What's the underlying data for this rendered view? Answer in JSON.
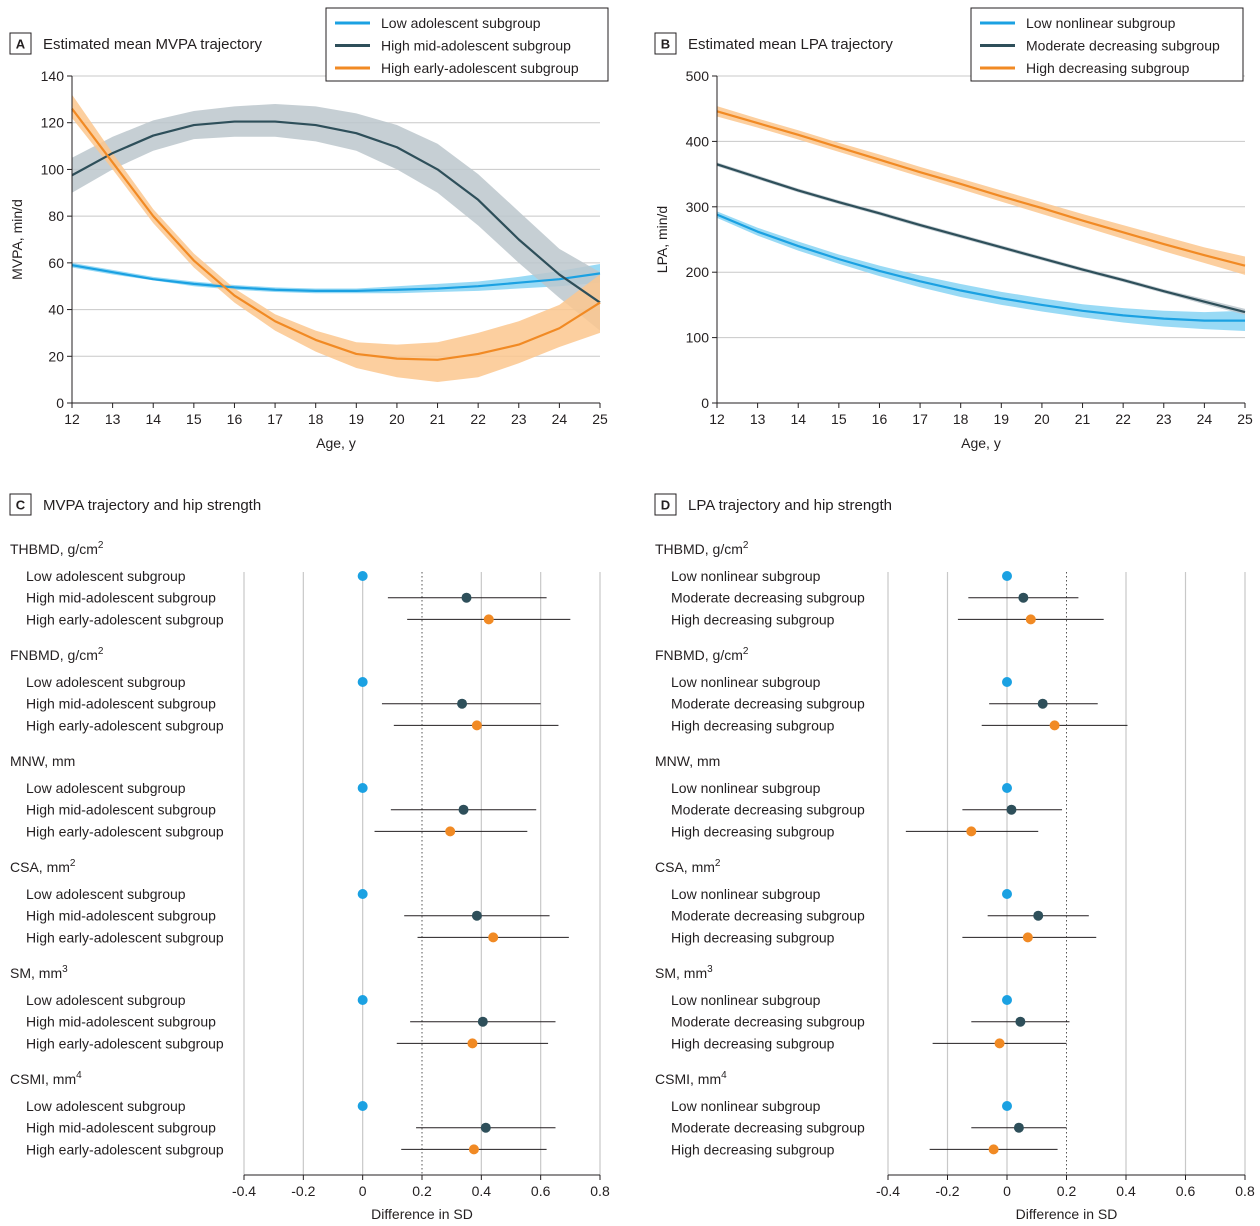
{
  "chart_data": [
    {
      "panel": "A",
      "type": "line",
      "title": "Estimated mean MVPA trajectory",
      "xlabel": "Age, y",
      "ylabel": "MVPA, min/d",
      "xlim": [
        12,
        25
      ],
      "ylim": [
        0,
        140
      ],
      "xticks": [
        "12",
        "13",
        "14",
        "15",
        "16",
        "17",
        "18",
        "19",
        "20",
        "21",
        "22",
        "23",
        "24",
        "25"
      ],
      "yticks": [
        "0",
        "20",
        "40",
        "60",
        "80",
        "100",
        "120",
        "140"
      ],
      "grid": "horizontal",
      "legend_position": "top-right",
      "series": [
        {
          "name": "Low adolescent subgroup",
          "color": "#1ba1e2",
          "band_color": "#87d3f3",
          "x": [
            12,
            13,
            14,
            15,
            16,
            17,
            18,
            19,
            20,
            21,
            22,
            23,
            24,
            25
          ],
          "y": [
            59,
            56,
            53,
            51,
            49.5,
            48.5,
            48,
            48,
            48.5,
            49,
            50,
            51.5,
            53,
            55.5
          ],
          "lower": [
            58,
            55,
            52.5,
            50,
            48.5,
            47.5,
            47,
            47,
            47,
            47.5,
            48,
            49,
            50,
            51.5
          ],
          "upper": [
            60,
            57,
            54,
            52,
            50.5,
            49.5,
            49,
            49,
            50,
            51,
            52,
            54,
            56.5,
            59.5
          ]
        },
        {
          "name": "High mid-adolescent subgroup",
          "color": "#2e4f5a",
          "band_color": "#bcc7cc",
          "x": [
            12,
            13,
            14,
            15,
            16,
            17,
            18,
            19,
            20,
            21,
            22,
            23,
            24,
            25
          ],
          "y": [
            97.5,
            107,
            114.5,
            119,
            120.5,
            120.5,
            119,
            115.5,
            109.5,
            100,
            87,
            70,
            55,
            43
          ],
          "lower": [
            90,
            100,
            108,
            113,
            114,
            114,
            112,
            108,
            100,
            90,
            76,
            60,
            45,
            31
          ],
          "upper": [
            105,
            114,
            121,
            125,
            127,
            128,
            127,
            124,
            119,
            111,
            98,
            82,
            66,
            56
          ]
        },
        {
          "name": "High early-adolescent subgroup",
          "color": "#f18a24",
          "band_color": "#fcc78e",
          "x": [
            12,
            13,
            14,
            15,
            16,
            17,
            18,
            19,
            20,
            21,
            22,
            23,
            24,
            25
          ],
          "y": [
            126,
            103,
            80,
            61,
            46,
            35,
            27,
            21,
            19,
            18.5,
            21,
            25,
            32,
            43
          ],
          "lower": [
            122,
            100,
            77,
            58,
            43,
            31,
            22,
            15,
            11,
            9,
            11,
            17,
            24,
            30
          ],
          "upper": [
            132,
            107,
            83,
            64,
            49,
            38,
            31,
            26,
            25,
            26,
            30,
            35,
            42,
            55
          ]
        }
      ]
    },
    {
      "panel": "B",
      "type": "line",
      "title": "Estimated mean LPA trajectory",
      "xlabel": "Age, y",
      "ylabel": "LPA, min/d",
      "xlim": [
        12,
        25
      ],
      "ylim": [
        0,
        500
      ],
      "xticks": [
        "12",
        "13",
        "14",
        "15",
        "16",
        "17",
        "18",
        "19",
        "20",
        "21",
        "22",
        "23",
        "24",
        "25"
      ],
      "yticks": [
        "0",
        "100",
        "200",
        "300",
        "400",
        "500"
      ],
      "grid": "horizontal",
      "legend_position": "top-right",
      "series": [
        {
          "name": "Low nonlinear subgroup",
          "color": "#1ba1e2",
          "band_color": "#87d3f3",
          "x": [
            12,
            13,
            14,
            15,
            16,
            17,
            18,
            19,
            20,
            21,
            22,
            23,
            24,
            25
          ],
          "y": [
            288,
            262,
            240,
            220,
            202,
            186,
            172,
            160,
            150,
            141,
            134,
            129,
            126,
            126
          ],
          "lower": [
            283,
            256,
            233,
            213,
            194,
            177,
            162,
            150,
            140,
            131,
            123,
            117,
            113,
            110
          ],
          "upper": [
            293,
            268,
            247,
            227,
            210,
            195,
            182,
            170,
            160,
            151,
            145,
            141,
            139,
            141
          ]
        },
        {
          "name": "Moderate decreasing subgroup",
          "color": "#2e4f5a",
          "band_color": "#bcc7cc",
          "x": [
            12,
            13,
            14,
            15,
            16,
            17,
            18,
            19,
            20,
            21,
            22,
            23,
            24,
            25
          ],
          "y": [
            365,
            345,
            325,
            307,
            290,
            272,
            255,
            238,
            221,
            204,
            188,
            171,
            155,
            139
          ],
          "lower": [
            362,
            342,
            322,
            304,
            287,
            269,
            252,
            235,
            218,
            201,
            185,
            168,
            151,
            135
          ],
          "upper": [
            368,
            348,
            328,
            310,
            293,
            275,
            258,
            241,
            224,
            207,
            191,
            174,
            159,
            144
          ]
        },
        {
          "name": "High decreasing subgroup",
          "color": "#f18a24",
          "band_color": "#fcc78e",
          "x": [
            12,
            13,
            14,
            15,
            16,
            17,
            18,
            19,
            20,
            21,
            22,
            23,
            24,
            25
          ],
          "y": [
            446,
            428,
            410,
            391,
            372,
            353,
            335,
            316,
            298,
            279,
            261,
            243,
            226,
            210
          ],
          "lower": [
            438,
            421,
            403,
            384,
            365,
            346,
            327,
            308,
            289,
            270,
            251,
            232,
            214,
            196
          ],
          "upper": [
            454,
            435,
            417,
            398,
            380,
            361,
            343,
            325,
            307,
            289,
            272,
            255,
            238,
            224
          ]
        }
      ]
    },
    {
      "panel": "C",
      "type": "scatter",
      "title": "MVPA trajectory and hip strength",
      "xlabel": "Difference in SD",
      "xlim": [
        -0.4,
        0.8
      ],
      "xticks": [
        "-0.4",
        "-0.2",
        "0",
        "0.2",
        "0.4",
        "0.6",
        "0.8"
      ],
      "reference_line": 0.2,
      "groups": [
        {
          "label": "THBMD, g/cm",
          "sup": "2",
          "rows": [
            {
              "name": "Low adolescent subgroup",
              "color": "#1ba1e2",
              "est": 0.0
            },
            {
              "name": "High mid-adolescent subgroup",
              "color": "#2e4f5a",
              "est": 0.35,
              "lo": 0.085,
              "hi": 0.62
            },
            {
              "name": "High early-adolescent subgroup",
              "color": "#f18a24",
              "est": 0.425,
              "lo": 0.15,
              "hi": 0.7
            }
          ]
        },
        {
          "label": "FNBMD, g/cm",
          "sup": "2",
          "rows": [
            {
              "name": "Low adolescent subgroup",
              "color": "#1ba1e2",
              "est": 0.0
            },
            {
              "name": "High mid-adolescent subgroup",
              "color": "#2e4f5a",
              "est": 0.335,
              "lo": 0.065,
              "hi": 0.6
            },
            {
              "name": "High early-adolescent subgroup",
              "color": "#f18a24",
              "est": 0.385,
              "lo": 0.105,
              "hi": 0.66
            }
          ]
        },
        {
          "label": "MNW, mm",
          "sup": "",
          "rows": [
            {
              "name": "Low adolescent subgroup",
              "color": "#1ba1e2",
              "est": 0.0
            },
            {
              "name": "High mid-adolescent subgroup",
              "color": "#2e4f5a",
              "est": 0.34,
              "lo": 0.095,
              "hi": 0.585
            },
            {
              "name": "High early-adolescent subgroup",
              "color": "#f18a24",
              "est": 0.295,
              "lo": 0.04,
              "hi": 0.555
            }
          ]
        },
        {
          "label": "CSA, mm",
          "sup": "2",
          "rows": [
            {
              "name": "Low adolescent subgroup",
              "color": "#1ba1e2",
              "est": 0.0
            },
            {
              "name": "High mid-adolescent subgroup",
              "color": "#2e4f5a",
              "est": 0.385,
              "lo": 0.14,
              "hi": 0.63
            },
            {
              "name": "High early-adolescent subgroup",
              "color": "#f18a24",
              "est": 0.44,
              "lo": 0.185,
              "hi": 0.695
            }
          ]
        },
        {
          "label": "SM, mm",
          "sup": "3",
          "rows": [
            {
              "name": "Low adolescent subgroup",
              "color": "#1ba1e2",
              "est": 0.0
            },
            {
              "name": "High mid-adolescent subgroup",
              "color": "#2e4f5a",
              "est": 0.405,
              "lo": 0.16,
              "hi": 0.65
            },
            {
              "name": "High early-adolescent subgroup",
              "color": "#f18a24",
              "est": 0.37,
              "lo": 0.115,
              "hi": 0.625
            }
          ]
        },
        {
          "label": "CSMI, mm",
          "sup": "4",
          "rows": [
            {
              "name": "Low adolescent subgroup",
              "color": "#1ba1e2",
              "est": 0.0
            },
            {
              "name": "High mid-adolescent subgroup",
              "color": "#2e4f5a",
              "est": 0.415,
              "lo": 0.18,
              "hi": 0.65
            },
            {
              "name": "High early-adolescent subgroup",
              "color": "#f18a24",
              "est": 0.375,
              "lo": 0.13,
              "hi": 0.62
            }
          ]
        }
      ]
    },
    {
      "panel": "D",
      "type": "scatter",
      "title": "LPA trajectory and hip strength",
      "xlabel": "Difference in SD",
      "xlim": [
        -0.4,
        0.8
      ],
      "xticks": [
        "-0.4",
        "-0.2",
        "0",
        "0.2",
        "0.4",
        "0.6",
        "0.8"
      ],
      "reference_line": 0.2,
      "groups": [
        {
          "label": "THBMD, g/cm",
          "sup": "2",
          "rows": [
            {
              "name": "Low nonlinear subgroup",
              "color": "#1ba1e2",
              "est": 0.0
            },
            {
              "name": "Moderate decreasing subgroup",
              "color": "#2e4f5a",
              "est": 0.055,
              "lo": -0.13,
              "hi": 0.24
            },
            {
              "name": "High decreasing subgroup",
              "color": "#f18a24",
              "est": 0.08,
              "lo": -0.165,
              "hi": 0.325
            }
          ]
        },
        {
          "label": "FNBMD, g/cm",
          "sup": "2",
          "rows": [
            {
              "name": "Low nonlinear subgroup",
              "color": "#1ba1e2",
              "est": 0.0
            },
            {
              "name": "Moderate decreasing subgroup",
              "color": "#2e4f5a",
              "est": 0.12,
              "lo": -0.06,
              "hi": 0.305
            },
            {
              "name": "High decreasing subgroup",
              "color": "#f18a24",
              "est": 0.16,
              "lo": -0.085,
              "hi": 0.405
            }
          ]
        },
        {
          "label": "MNW, mm",
          "sup": "",
          "rows": [
            {
              "name": "Low nonlinear subgroup",
              "color": "#1ba1e2",
              "est": 0.0
            },
            {
              "name": "Moderate decreasing subgroup",
              "color": "#2e4f5a",
              "est": 0.015,
              "lo": -0.15,
              "hi": 0.185
            },
            {
              "name": "High decreasing subgroup",
              "color": "#f18a24",
              "est": -0.12,
              "lo": -0.34,
              "hi": 0.105
            }
          ]
        },
        {
          "label": "CSA, mm",
          "sup": "2",
          "rows": [
            {
              "name": "Low nonlinear subgroup",
              "color": "#1ba1e2",
              "est": 0.0
            },
            {
              "name": "Moderate decreasing subgroup",
              "color": "#2e4f5a",
              "est": 0.105,
              "lo": -0.065,
              "hi": 0.275
            },
            {
              "name": "High decreasing subgroup",
              "color": "#f18a24",
              "est": 0.07,
              "lo": -0.15,
              "hi": 0.3
            }
          ]
        },
        {
          "label": "SM, mm",
          "sup": "3",
          "rows": [
            {
              "name": "Low nonlinear subgroup",
              "color": "#1ba1e2",
              "est": 0.0
            },
            {
              "name": "Moderate decreasing subgroup",
              "color": "#2e4f5a",
              "est": 0.045,
              "lo": -0.12,
              "hi": 0.21
            },
            {
              "name": "High decreasing subgroup",
              "color": "#f18a24",
              "est": -0.025,
              "lo": -0.25,
              "hi": 0.2
            }
          ]
        },
        {
          "label": "CSMI, mm",
          "sup": "4",
          "rows": [
            {
              "name": "Low nonlinear subgroup",
              "color": "#1ba1e2",
              "est": 0.0
            },
            {
              "name": "Moderate decreasing subgroup",
              "color": "#2e4f5a",
              "est": 0.04,
              "lo": -0.12,
              "hi": 0.2
            },
            {
              "name": "High decreasing subgroup",
              "color": "#f18a24",
              "est": -0.045,
              "lo": -0.26,
              "hi": 0.17
            }
          ]
        }
      ]
    }
  ]
}
